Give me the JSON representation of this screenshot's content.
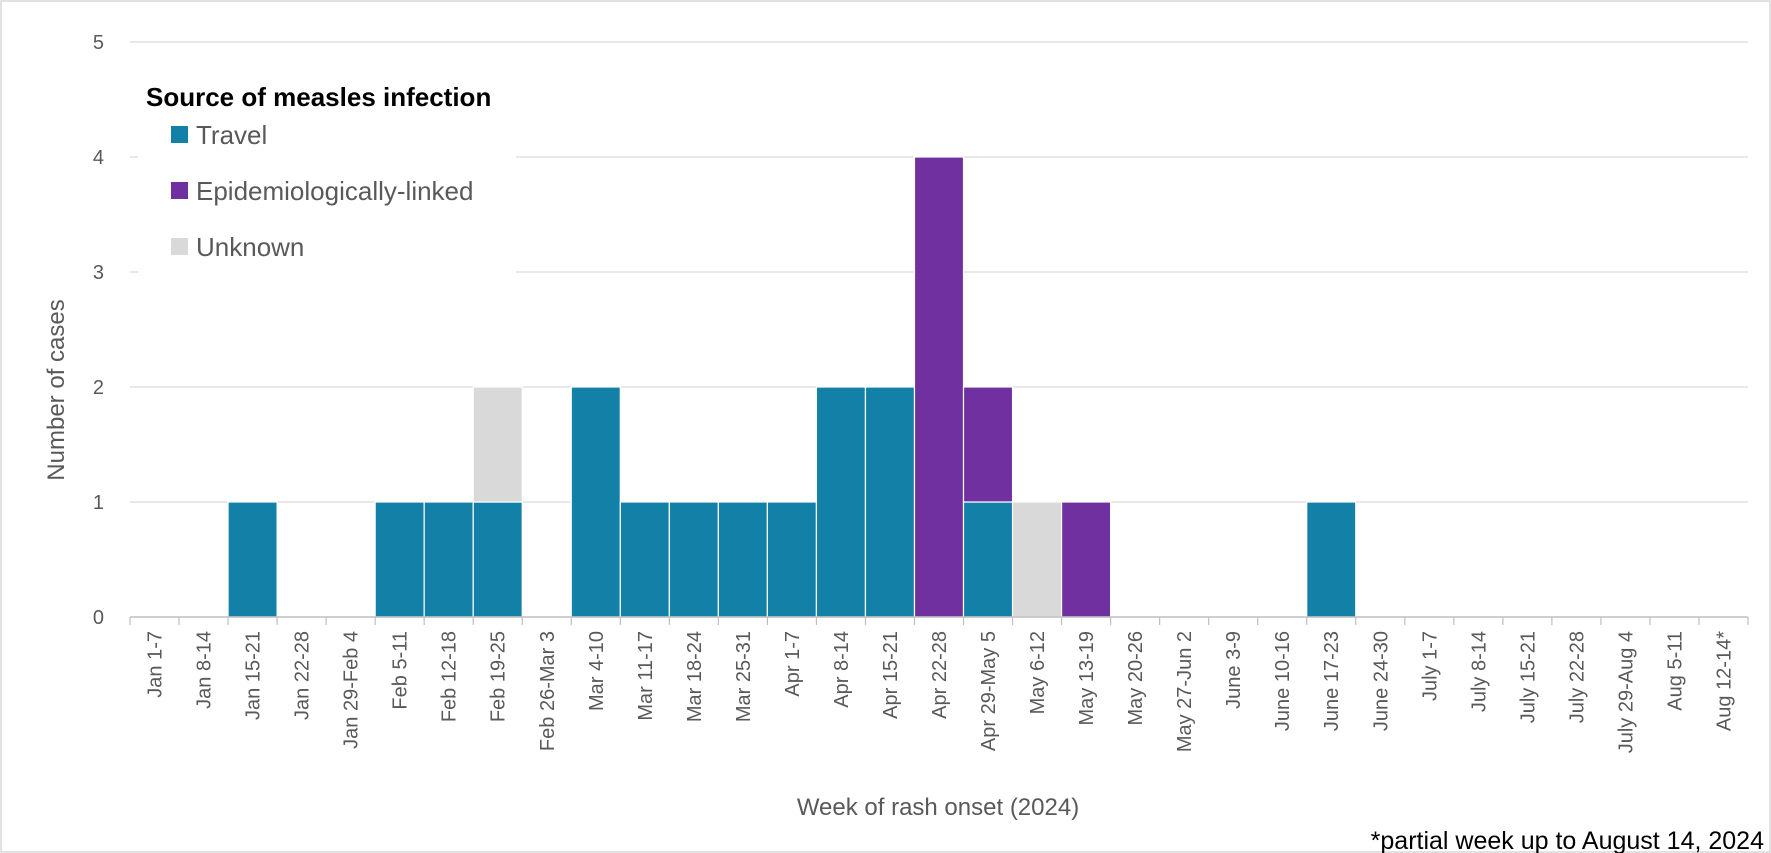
{
  "chart_data": {
    "type": "bar",
    "stacked": true,
    "xlabel": "Week of rash onset (2024)",
    "ylabel": "Number of cases",
    "ylim": [
      0,
      5
    ],
    "yticks": [
      0,
      1,
      2,
      3,
      4,
      5
    ],
    "grid": true,
    "legend": {
      "title": "Source of measles infection",
      "placement": "top-left"
    },
    "footnote": "*partial week up to August 14, 2024",
    "categories": [
      "Jan 1-7",
      "Jan 8-14",
      "Jan 15-21",
      "Jan 22-28",
      "Jan 29-Feb 4",
      "Feb 5-11",
      "Feb 12-18",
      "Feb 19-25",
      "Feb 26-Mar 3",
      "Mar 4-10",
      "Mar 11-17",
      "Mar 18-24",
      "Mar 25-31",
      "Apr 1-7",
      "Apr 8-14",
      "Apr 15-21",
      "Apr 22-28",
      "Apr 29-May 5",
      "May 6-12",
      "May 13-19",
      "May 20-26",
      "May 27-Jun 2",
      "June 3-9",
      "June 10-16",
      "June 17-23",
      "June 24-30",
      "July 1-7",
      "July 8-14",
      "July 15-21",
      "July 22-28",
      "July 29-Aug 4",
      "Aug 5-11",
      "Aug 12-14*"
    ],
    "series": [
      {
        "name": "Travel",
        "color": "#1380a8",
        "values": [
          0,
          0,
          1,
          0,
          0,
          1,
          1,
          1,
          0,
          2,
          1,
          1,
          1,
          1,
          2,
          2,
          0,
          1,
          0,
          0,
          0,
          0,
          0,
          0,
          1,
          0,
          0,
          0,
          0,
          0,
          0,
          0,
          0
        ]
      },
      {
        "name": "Epidemiologically-linked",
        "color": "#7030a0",
        "values": [
          0,
          0,
          0,
          0,
          0,
          0,
          0,
          0,
          0,
          0,
          0,
          0,
          0,
          0,
          0,
          0,
          4,
          1,
          0,
          1,
          0,
          0,
          0,
          0,
          0,
          0,
          0,
          0,
          0,
          0,
          0,
          0,
          0
        ]
      },
      {
        "name": "Unknown",
        "color": "#d9d9d9",
        "values": [
          0,
          0,
          0,
          0,
          0,
          0,
          0,
          1,
          0,
          0,
          0,
          0,
          0,
          0,
          0,
          0,
          0,
          0,
          1,
          0,
          0,
          0,
          0,
          0,
          0,
          0,
          0,
          0,
          0,
          0,
          0,
          0,
          0
        ]
      }
    ]
  }
}
